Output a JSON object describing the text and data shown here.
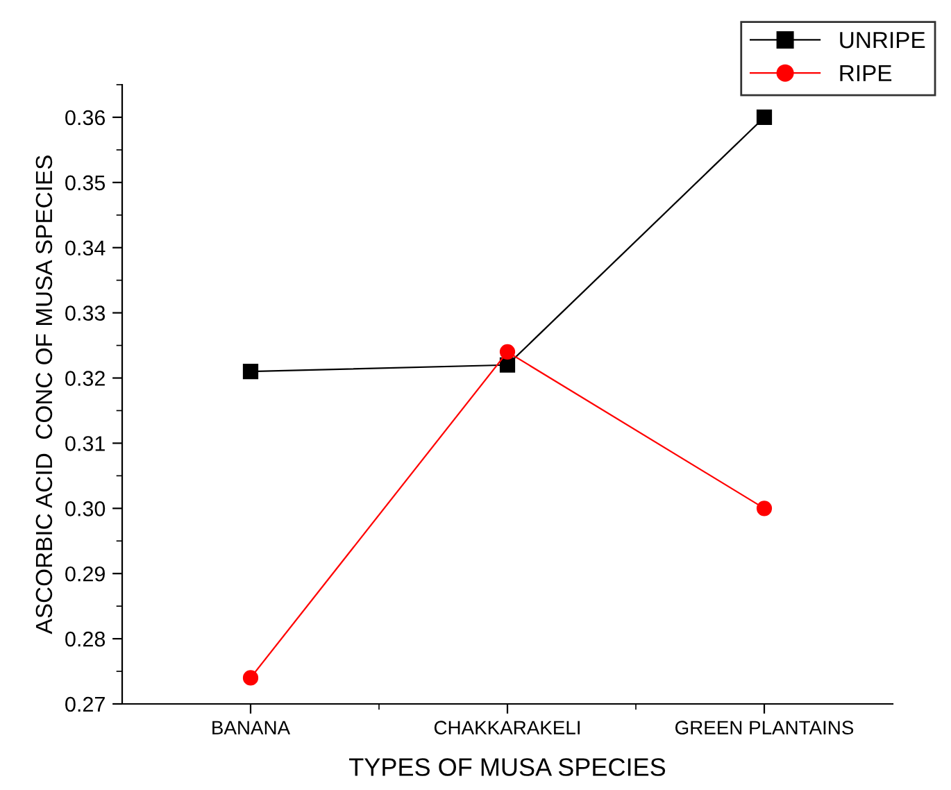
{
  "chart_data": {
    "type": "line",
    "xlabel": "TYPES OF MUSA SPECIES",
    "ylabel": "ASCORBIC ACID  CONC OF MUSA SPECIES",
    "categories": [
      "BANANA",
      "CHAKKARAKELI",
      "GREEN PLANTAINS"
    ],
    "series": [
      {
        "name": "UNRIPE",
        "color": "#000000",
        "marker": "square",
        "values": [
          0.321,
          0.322,
          0.36
        ]
      },
      {
        "name": "RIPE",
        "color": "#ff0000",
        "marker": "circle",
        "values": [
          0.274,
          0.324,
          0.3
        ]
      }
    ],
    "ylim": [
      0.27,
      0.365
    ],
    "yticks": [
      0.27,
      0.28,
      0.29,
      {
        "value": 0.3,
        "label": "0.30"
      },
      0.31,
      0.32,
      0.33,
      0.34,
      0.35,
      0.36
    ],
    "grid": false,
    "legend": "top right",
    "line_style": "solid"
  }
}
